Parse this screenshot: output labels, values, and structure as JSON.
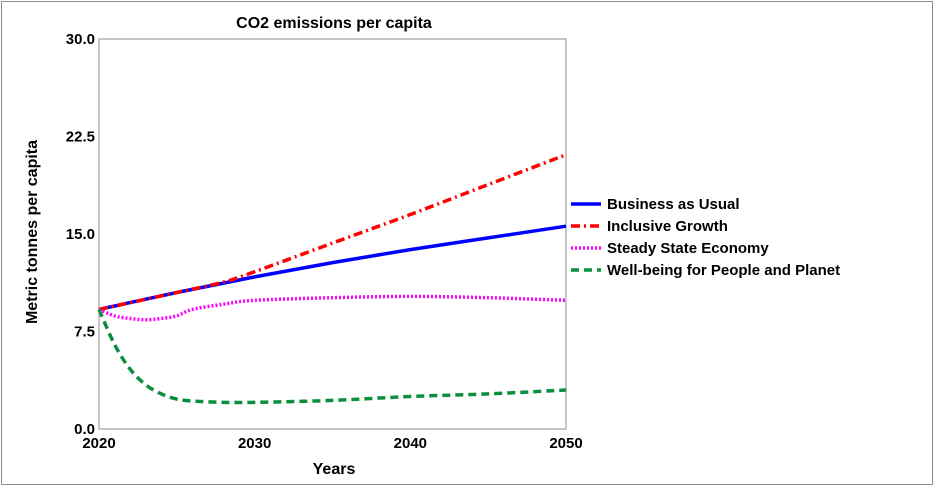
{
  "chart_data": {
    "type": "line",
    "title": "CO2 emissions per capita",
    "xlabel": "Years",
    "ylabel": "Metric tonnes per capita",
    "xlim": [
      2020,
      2050
    ],
    "ylim": [
      0,
      30
    ],
    "x_ticks": [
      "2020",
      "2030",
      "2040",
      "2050"
    ],
    "y_ticks": [
      "0.0",
      "7.5",
      "15.0",
      "22.5",
      "30.0"
    ],
    "grid": false,
    "legend_position": "right",
    "series": [
      {
        "name": "Business as Usual",
        "color": "#0000ff",
        "dash": "solid",
        "points": [
          [
            2020,
            9.2
          ],
          [
            2025,
            10.5
          ],
          [
            2030,
            11.7
          ],
          [
            2035,
            12.8
          ],
          [
            2040,
            13.8
          ],
          [
            2045,
            14.7
          ],
          [
            2050,
            15.6
          ]
        ]
      },
      {
        "name": "Inclusive Growth",
        "color": "#ff0000",
        "dash": "dashdot",
        "points": [
          [
            2020,
            9.2
          ],
          [
            2025,
            10.5
          ],
          [
            2028,
            11.3
          ],
          [
            2030,
            12.1
          ],
          [
            2035,
            14.3
          ],
          [
            2040,
            16.5
          ],
          [
            2045,
            18.8
          ],
          [
            2050,
            21.1
          ]
        ]
      },
      {
        "name": "Steady State Economy",
        "color": "#ff00ff",
        "dash": "dotted",
        "points": [
          [
            2020,
            9.2
          ],
          [
            2021,
            8.7
          ],
          [
            2022,
            8.5
          ],
          [
            2023,
            8.4
          ],
          [
            2024,
            8.5
          ],
          [
            2025,
            8.7
          ],
          [
            2026,
            9.2
          ],
          [
            2028,
            9.6
          ],
          [
            2030,
            9.9
          ],
          [
            2035,
            10.1
          ],
          [
            2040,
            10.2
          ],
          [
            2045,
            10.1
          ],
          [
            2050,
            9.9
          ]
        ]
      },
      {
        "name": "Well-being for People and Planet",
        "color": "#0b8f3e",
        "dash": "dashed",
        "points": [
          [
            2020,
            9.2
          ],
          [
            2021,
            6.5
          ],
          [
            2022,
            4.6
          ],
          [
            2023,
            3.4
          ],
          [
            2024,
            2.7
          ],
          [
            2025,
            2.3
          ],
          [
            2026,
            2.15
          ],
          [
            2028,
            2.05
          ],
          [
            2030,
            2.05
          ],
          [
            2035,
            2.2
          ],
          [
            2040,
            2.5
          ],
          [
            2045,
            2.7
          ],
          [
            2050,
            3.0
          ]
        ]
      }
    ]
  }
}
